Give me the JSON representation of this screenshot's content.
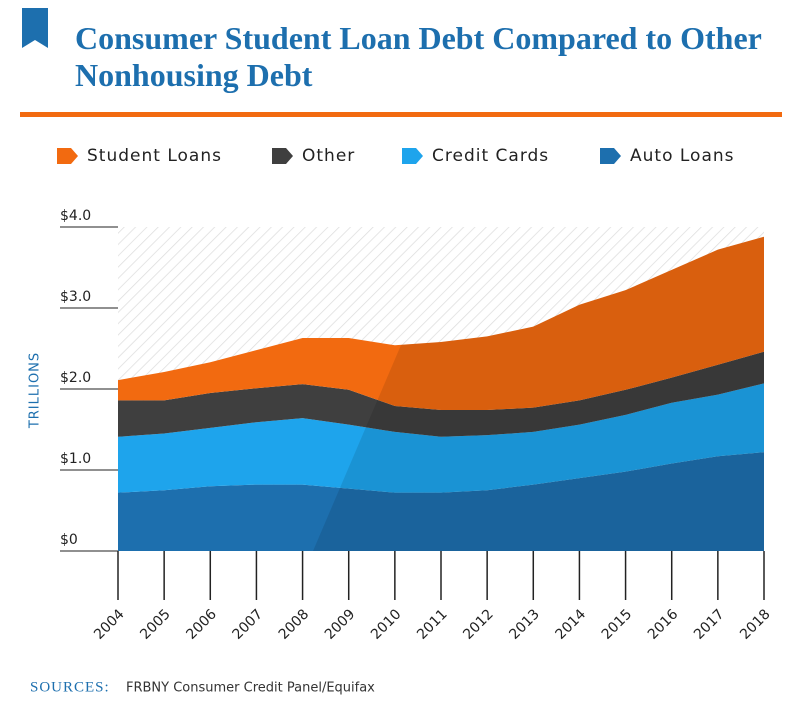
{
  "chart_data": {
    "type": "stacked-area",
    "title": "Consumer Student Loan Debt Compared to Other Nonhousing Debt",
    "y_label": "TRILLIONS",
    "source_label": "SOURCES:",
    "source": "FRBNY Consumer Credit Panel/Equifax",
    "x": [
      2004,
      2005,
      2006,
      2007,
      2008,
      2009,
      2010,
      2011,
      2012,
      2013,
      2014,
      2015,
      2016,
      2017,
      2018
    ],
    "series": [
      {
        "name": "Student Loans",
        "color": "#f26a10",
        "values": [
          0.25,
          0.35,
          0.38,
          0.47,
          0.57,
          0.64,
          0.75,
          0.84,
          0.91,
          1.0,
          1.18,
          1.23,
          1.33,
          1.42,
          1.42
        ]
      },
      {
        "name": "Other",
        "color": "#3f3f3f",
        "values": [
          0.45,
          0.41,
          0.43,
          0.42,
          0.42,
          0.43,
          0.32,
          0.33,
          0.31,
          0.3,
          0.3,
          0.31,
          0.31,
          0.37,
          0.39
        ]
      },
      {
        "name": "Credit Cards",
        "color": "#1ea4ec",
        "values": [
          0.69,
          0.7,
          0.72,
          0.77,
          0.82,
          0.79,
          0.75,
          0.69,
          0.68,
          0.65,
          0.66,
          0.7,
          0.75,
          0.76,
          0.85
        ]
      },
      {
        "name": "Auto Loans",
        "color": "#1d6fae",
        "values": [
          0.72,
          0.75,
          0.8,
          0.82,
          0.82,
          0.77,
          0.72,
          0.72,
          0.75,
          0.82,
          0.9,
          0.98,
          1.08,
          1.17,
          1.22
        ]
      }
    ],
    "xlim": [
      2004,
      2018
    ],
    "xticks": [
      2004,
      2005,
      2006,
      2007,
      2008,
      2009,
      2010,
      2011,
      2012,
      2013,
      2014,
      2015,
      2016,
      2017,
      2018
    ],
    "ylim": [
      0,
      4
    ],
    "yticks": [
      {
        "value": 0,
        "label": "$0"
      },
      {
        "value": 1,
        "label": "$1.0"
      },
      {
        "value": 2,
        "label": "$2.0"
      },
      {
        "value": 3,
        "label": "$3.0"
      },
      {
        "value": 4,
        "label": "$4.0"
      }
    ]
  }
}
